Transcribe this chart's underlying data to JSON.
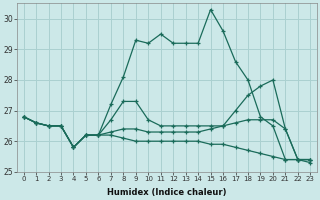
{
  "xlabel": "Humidex (Indice chaleur)",
  "background_color": "#cce8e8",
  "grid_color": "#aad0d0",
  "line_color": "#1a6b5a",
  "x": [
    0,
    1,
    2,
    3,
    4,
    5,
    6,
    7,
    8,
    9,
    10,
    11,
    12,
    13,
    14,
    15,
    16,
    17,
    18,
    19,
    20,
    21,
    22,
    23
  ],
  "series_max": [
    26.8,
    26.6,
    26.5,
    26.5,
    25.8,
    26.2,
    26.2,
    27.2,
    28.1,
    29.3,
    29.2,
    29.5,
    29.2,
    29.2,
    29.2,
    30.3,
    29.6,
    28.6,
    28.0,
    26.8,
    26.5,
    25.4,
    25.4,
    25.4
  ],
  "series_avg_high": [
    26.8,
    26.6,
    26.5,
    26.5,
    25.8,
    26.2,
    26.2,
    26.7,
    27.3,
    27.3,
    26.7,
    26.5,
    26.5,
    26.5,
    26.5,
    26.5,
    26.5,
    27.0,
    27.5,
    27.8,
    28.0,
    26.4,
    25.4,
    25.4
  ],
  "series_avg_low": [
    26.8,
    26.6,
    26.5,
    26.5,
    25.8,
    26.2,
    26.2,
    26.3,
    26.4,
    26.4,
    26.3,
    26.3,
    26.3,
    26.3,
    26.3,
    26.4,
    26.5,
    26.6,
    26.7,
    26.7,
    26.7,
    26.4,
    25.4,
    25.4
  ],
  "series_min": [
    26.8,
    26.6,
    26.5,
    26.5,
    25.8,
    26.2,
    26.2,
    26.2,
    26.1,
    26.0,
    26.0,
    26.0,
    26.0,
    26.0,
    26.0,
    25.9,
    25.9,
    25.8,
    25.7,
    25.6,
    25.5,
    25.4,
    25.4,
    25.3
  ],
  "ylim": [
    25.0,
    30.5
  ],
  "yticks": [
    25,
    26,
    27,
    28,
    29,
    30
  ],
  "xticks": [
    0,
    1,
    2,
    3,
    4,
    5,
    6,
    7,
    8,
    9,
    10,
    11,
    12,
    13,
    14,
    15,
    16,
    17,
    18,
    19,
    20,
    21,
    22,
    23
  ]
}
